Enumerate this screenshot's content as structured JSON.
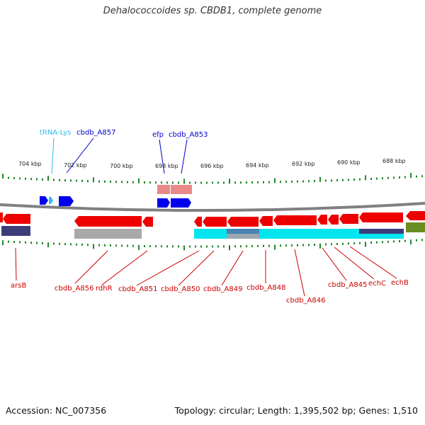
{
  "title": "Dehalococcoides sp. CBDB1, complete genome",
  "footer": {
    "accession": "Accession: NC_007356",
    "summary": "Topology: circular; Length: 1,395,502 bp; Genes: 1,510"
  },
  "colors": {
    "forward_gene": "#0000ee",
    "reverse_gene": "#ee0000",
    "top_label": "#0000cc",
    "bottom_label": "#cc0000",
    "trna": "#33bbee",
    "pseudo": "#e88888",
    "tick": "#22882a",
    "backbone": "#808080"
  },
  "kbp_labels": [
    "704 kbp",
    "702 kbp",
    "700 kbp",
    "698 kbp",
    "696 kbp",
    "694 kbp",
    "692 kbp",
    "690 kbp",
    "688 kbp"
  ],
  "top_labels": [
    "tRNA-Lys",
    "cbdb_A857",
    "efp",
    "cbdb_A853"
  ],
  "bottom_labels": [
    "arsB",
    "cbdb_A856",
    "rdhR",
    "cbdb_A851",
    "cbdb_A850",
    "cbdb_A849",
    "cbdb_A848",
    "cbdb_A846",
    "cbdb_A845",
    "echC",
    "echB"
  ]
}
